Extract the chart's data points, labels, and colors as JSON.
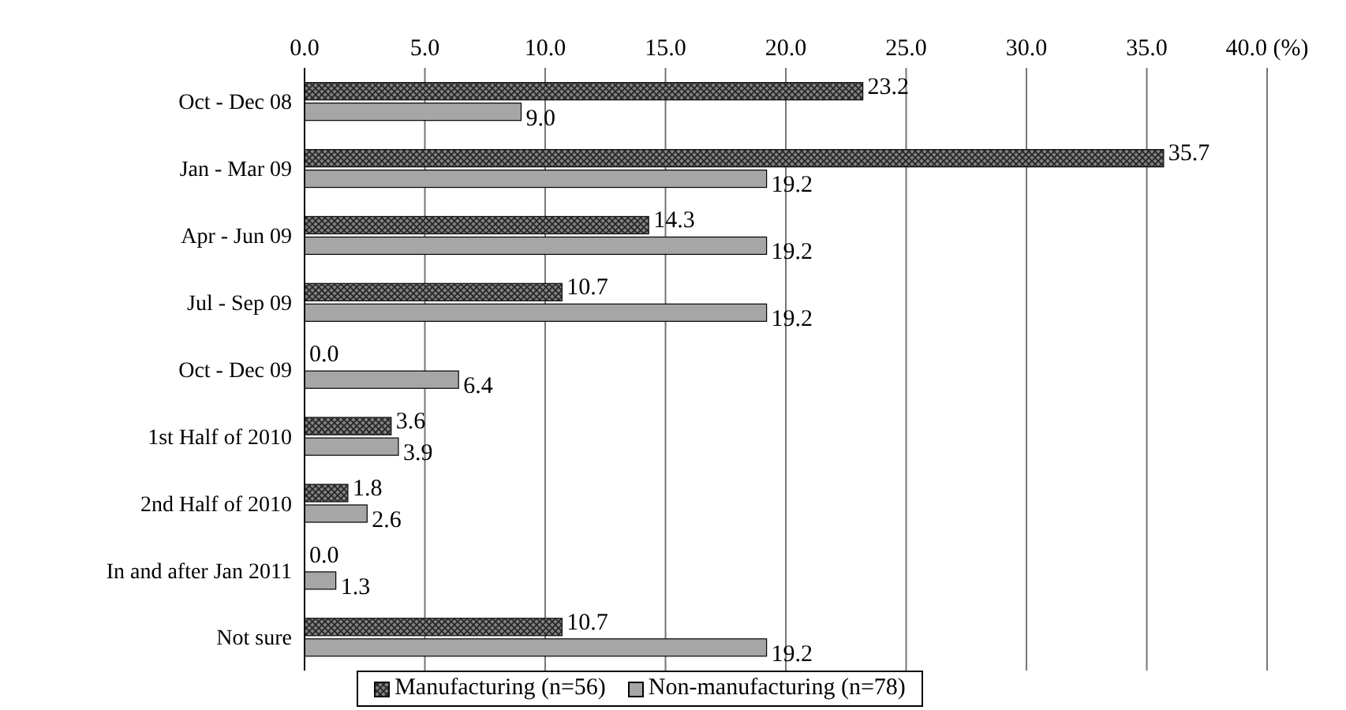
{
  "chart_data": {
    "type": "bar",
    "orientation": "horizontal",
    "categories": [
      "Oct - Dec 08",
      "Jan - Mar 09",
      "Apr -  Jun 09",
      "Jul - Sep 09",
      "Oct - Dec 09",
      "1st Half of 2010",
      "2nd Half of 2010",
      "In and after Jan 2011",
      "Not sure"
    ],
    "series": [
      {
        "name": "Manufacturing (n=56)",
        "color": "#808080",
        "values": [
          23.2,
          35.7,
          14.3,
          10.7,
          0.0,
          3.6,
          1.8,
          0.0,
          10.7
        ],
        "value_labels": [
          "23.2",
          "35.7",
          "14.3",
          "10.7",
          "0.0",
          "3.6",
          "1.8",
          "0.0",
          "10.7"
        ]
      },
      {
        "name": "Non-manufacturing (n=78)",
        "color": "#a6a6a6",
        "values": [
          9.0,
          19.2,
          19.2,
          19.2,
          6.4,
          3.9,
          2.6,
          1.3,
          19.2
        ],
        "value_labels": [
          "9.0",
          "19.2",
          "19.2",
          "19.2",
          "6.4",
          "3.9",
          "2.6",
          "1.3",
          "19.2"
        ]
      }
    ],
    "xlim": [
      0,
      40
    ],
    "xticks": [
      {
        "value": 0,
        "label": "0.0"
      },
      {
        "value": 5,
        "label": "5.0"
      },
      {
        "value": 10,
        "label": "10.0"
      },
      {
        "value": 15,
        "label": "15.0"
      },
      {
        "value": 20,
        "label": "20.0"
      },
      {
        "value": 25,
        "label": "25.0"
      },
      {
        "value": 30,
        "label": "30.0"
      },
      {
        "value": 35,
        "label": "35.0"
      },
      {
        "value": 40,
        "label": "40.0 (%)"
      }
    ],
    "grid": "x",
    "legend": "bottom"
  }
}
